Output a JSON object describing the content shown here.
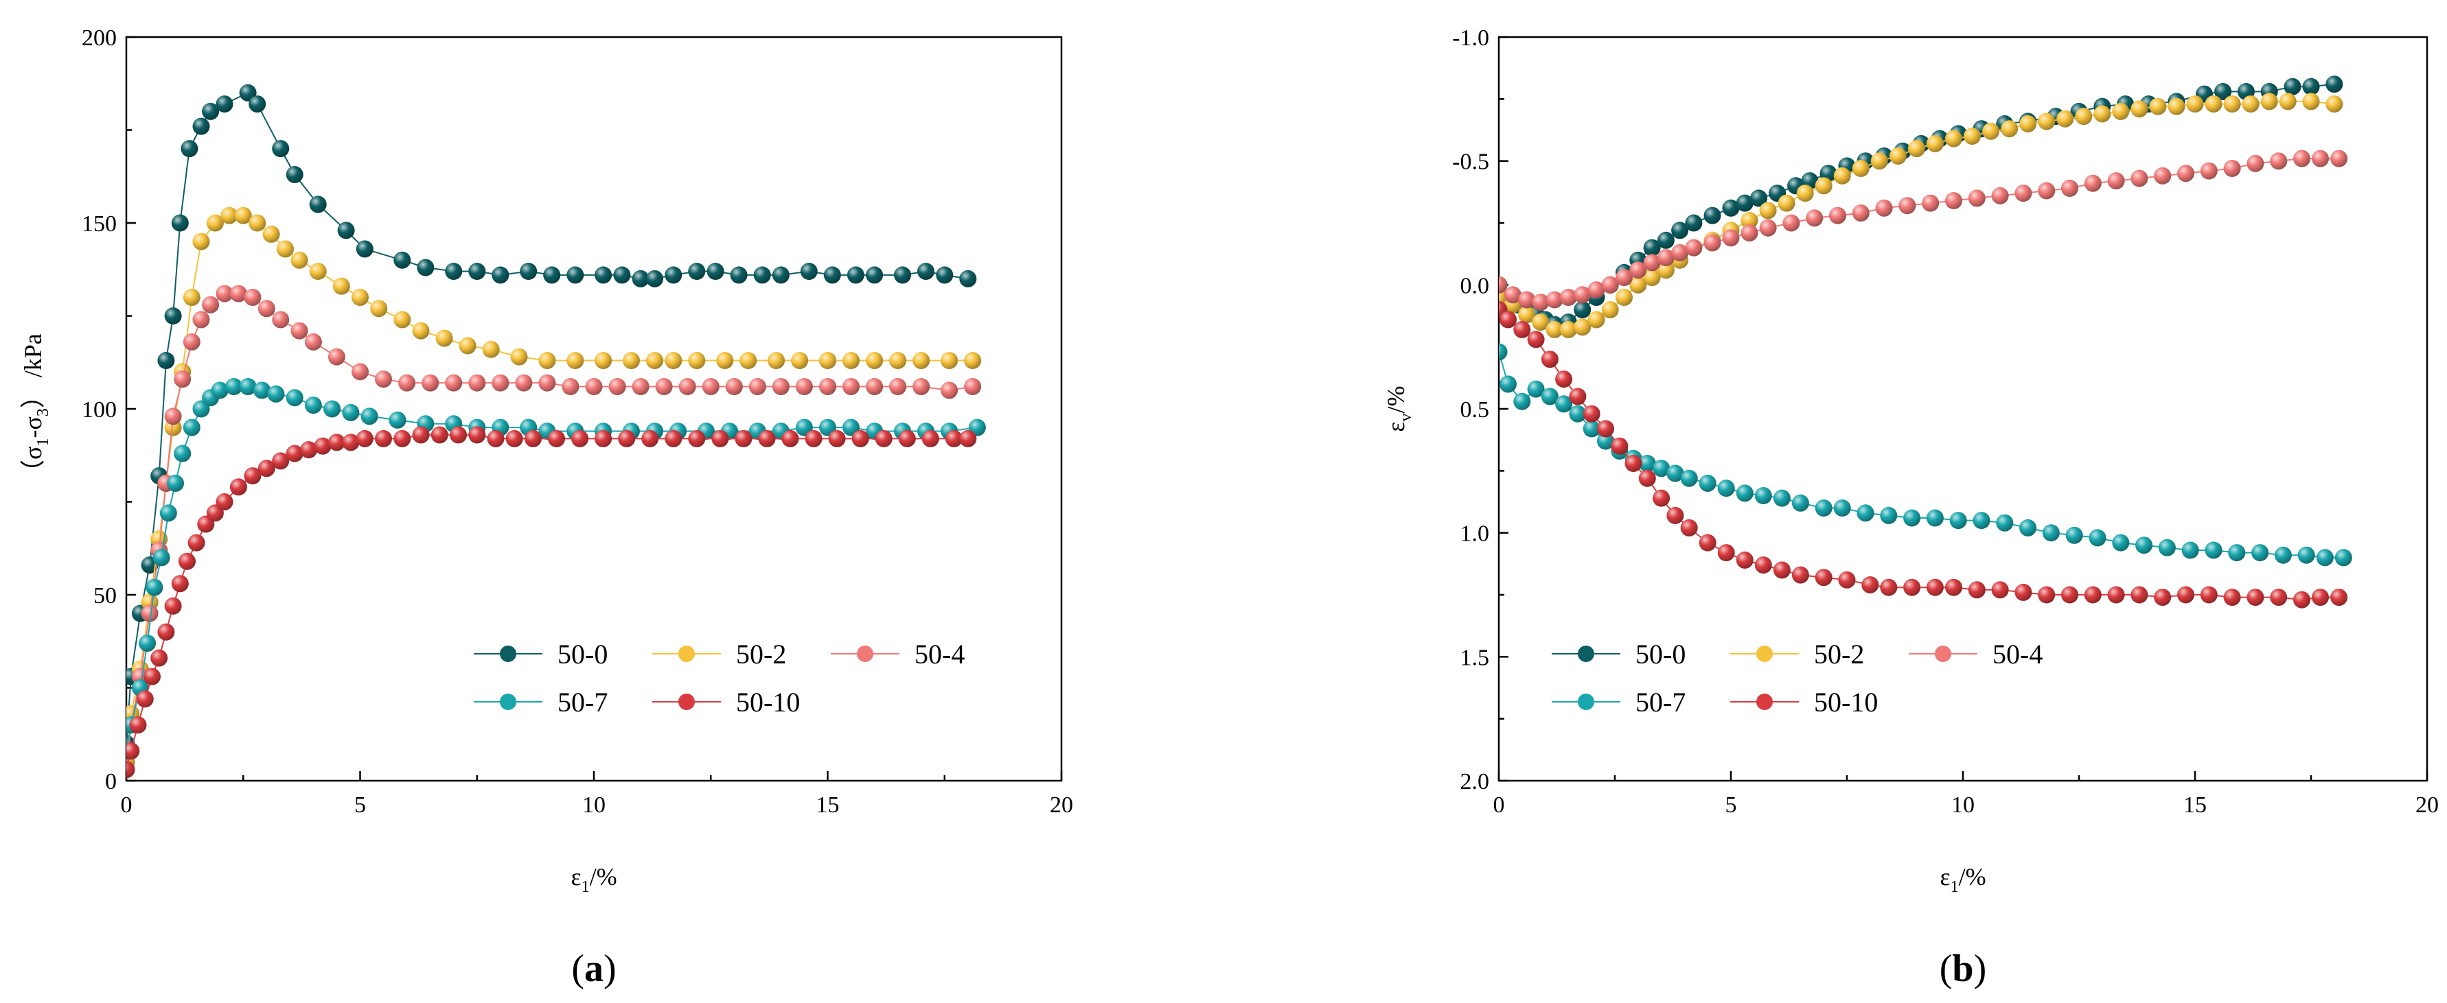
{
  "colors": {
    "50-0": "#0d5e63",
    "50-2": "#f6c23c",
    "50-4": "#f07877",
    "50-7": "#19a6ad",
    "50-10": "#d93a3e"
  },
  "chart_data": [
    {
      "panel": "(a)",
      "panel_prefix": "(",
      "panel_letter": "a",
      "panel_suffix": ")",
      "type": "line",
      "title": "",
      "xlabel": "ε1/%",
      "xlabel_main": "ε",
      "xlabel_sub": "1",
      "xlabel_suffix": "/%",
      "ylabel": "(σ1-σ3) /kPa",
      "ylabel_parts": [
        "（σ",
        "1",
        "-σ",
        "3",
        "） /kPa"
      ],
      "xlim": [
        0,
        20
      ],
      "ylim": [
        0,
        200
      ],
      "xticks": [
        "0",
        "5",
        "10",
        "15",
        "20"
      ],
      "yticks": [
        "0",
        "50",
        "100",
        "150",
        "200"
      ],
      "legend": {
        "placement": "lower-right",
        "entries": [
          "50-0",
          "50-2",
          "50-4",
          "50-7",
          "50-10"
        ]
      },
      "series": [
        {
          "name": "50-0",
          "x": [
            0,
            0.1,
            0.3,
            0.5,
            0.7,
            0.85,
            1.0,
            1.15,
            1.35,
            1.6,
            1.8,
            2.1,
            2.6,
            2.8,
            3.3,
            3.6,
            4.1,
            4.7,
            5.1,
            5.9,
            6.4,
            7.0,
            7.5,
            8.0,
            8.6,
            9.1,
            9.6,
            10.2,
            10.6,
            11.0,
            11.3,
            11.7,
            12.2,
            12.6,
            13.1,
            13.6,
            14.0,
            14.6,
            15.1,
            15.6,
            16.0,
            16.6,
            17.1,
            17.5,
            18.0
          ],
          "y": [
            10,
            28,
            45,
            58,
            82,
            113,
            125,
            150,
            170,
            176,
            180,
            182,
            185,
            182,
            170,
            163,
            155,
            148,
            143,
            140,
            138,
            137,
            137,
            136,
            137,
            136,
            136,
            136,
            136,
            135,
            135,
            136,
            137,
            137,
            136,
            136,
            136,
            137,
            136,
            136,
            136,
            136,
            137,
            136,
            135
          ]
        },
        {
          "name": "50-2",
          "x": [
            0,
            0.1,
            0.3,
            0.5,
            0.7,
            0.85,
            1.0,
            1.2,
            1.4,
            1.6,
            1.9,
            2.2,
            2.5,
            2.8,
            3.1,
            3.4,
            3.7,
            4.1,
            4.6,
            5.0,
            5.4,
            5.9,
            6.3,
            6.8,
            7.3,
            7.8,
            8.4,
            9.0,
            9.6,
            10.2,
            10.8,
            11.3,
            11.7,
            12.2,
            12.8,
            13.3,
            13.9,
            14.4,
            15.0,
            15.5,
            16.0,
            16.5,
            17.0,
            17.6,
            18.1
          ],
          "y": [
            5,
            18,
            30,
            48,
            65,
            80,
            95,
            110,
            130,
            145,
            150,
            152,
            152,
            150,
            147,
            143,
            140,
            137,
            133,
            130,
            127,
            124,
            121,
            119,
            117,
            116,
            114,
            113,
            113,
            113,
            113,
            113,
            113,
            113,
            113,
            113,
            113,
            113,
            113,
            113,
            113,
            113,
            113,
            113,
            113
          ]
        },
        {
          "name": "50-4",
          "x": [
            0,
            0.1,
            0.3,
            0.5,
            0.7,
            0.85,
            1.0,
            1.2,
            1.4,
            1.6,
            1.8,
            2.1,
            2.4,
            2.7,
            3.0,
            3.3,
            3.7,
            4.0,
            4.5,
            5.0,
            5.5,
            6.0,
            6.5,
            7.0,
            7.5,
            8.0,
            8.5,
            9.0,
            9.5,
            10.0,
            10.5,
            11.0,
            11.5,
            12.0,
            12.5,
            13.0,
            13.5,
            14.0,
            14.5,
            15.0,
            15.5,
            16.0,
            16.5,
            17.0,
            17.6,
            18.1
          ],
          "y": [
            3,
            15,
            28,
            45,
            62,
            80,
            98,
            108,
            118,
            124,
            128,
            131,
            131,
            130,
            127,
            124,
            121,
            118,
            114,
            110,
            108,
            107,
            107,
            107,
            107,
            107,
            107,
            107,
            106,
            106,
            106,
            106,
            106,
            106,
            106,
            106,
            106,
            106,
            106,
            106,
            106,
            106,
            106,
            106,
            105,
            106
          ]
        },
        {
          "name": "50-7",
          "x": [
            0,
            0.1,
            0.3,
            0.45,
            0.6,
            0.75,
            0.9,
            1.05,
            1.2,
            1.4,
            1.6,
            1.8,
            2.0,
            2.3,
            2.6,
            2.9,
            3.2,
            3.6,
            4.0,
            4.4,
            4.8,
            5.2,
            5.8,
            6.4,
            7.0,
            7.5,
            8.0,
            8.6,
            9.0,
            9.6,
            10.2,
            10.8,
            11.3,
            11.8,
            12.4,
            12.9,
            13.5,
            14.0,
            14.5,
            15.0,
            15.5,
            16.0,
            16.6,
            17.1,
            17.6,
            18.2
          ],
          "y": [
            8,
            15,
            25,
            37,
            52,
            60,
            72,
            80,
            88,
            95,
            100,
            103,
            105,
            106,
            106,
            105,
            104,
            103,
            101,
            100,
            99,
            98,
            97,
            96,
            96,
            95,
            95,
            95,
            94,
            94,
            94,
            94,
            94,
            94,
            94,
            94,
            94,
            94,
            95,
            95,
            95,
            94,
            94,
            94,
            94,
            95
          ]
        },
        {
          "name": "50-10",
          "x": [
            0,
            0.1,
            0.25,
            0.4,
            0.55,
            0.7,
            0.85,
            1.0,
            1.15,
            1.3,
            1.5,
            1.7,
            1.9,
            2.1,
            2.4,
            2.7,
            3.0,
            3.3,
            3.6,
            3.9,
            4.2,
            4.5,
            4.8,
            5.1,
            5.5,
            5.9,
            6.3,
            6.7,
            7.1,
            7.5,
            7.9,
            8.3,
            8.7,
            9.2,
            9.7,
            10.2,
            10.7,
            11.2,
            11.7,
            12.2,
            12.7,
            13.2,
            13.7,
            14.2,
            14.7,
            15.2,
            15.7,
            16.2,
            16.7,
            17.2,
            17.7,
            18.0
          ],
          "y": [
            3,
            8,
            15,
            22,
            28,
            33,
            40,
            47,
            53,
            59,
            64,
            69,
            72,
            75,
            79,
            82,
            84,
            86,
            88,
            89,
            90,
            91,
            91,
            92,
            92,
            92,
            93,
            93,
            93,
            93,
            92,
            92,
            92,
            92,
            92,
            92,
            92,
            92,
            92,
            92,
            92,
            92,
            92,
            92,
            92,
            92,
            92,
            92,
            92,
            92,
            92,
            92
          ]
        }
      ]
    },
    {
      "panel": "(b)",
      "panel_prefix": "(",
      "panel_letter": "b",
      "panel_suffix": ")",
      "type": "line",
      "title": "",
      "xlabel": "ε1/%",
      "xlabel_main": "ε",
      "xlabel_sub": "1",
      "xlabel_suffix": "/%",
      "ylabel": "εv/%",
      "ylabel_main": "ε",
      "ylabel_sub": "v",
      "ylabel_suffix": "/%",
      "xlim": [
        0,
        20
      ],
      "ylim": [
        2.0,
        -1.0
      ],
      "xticks": [
        "0",
        "5",
        "10",
        "15",
        "20"
      ],
      "yticks": [
        "2.0",
        "1.5",
        "1.0",
        "0.5",
        "0.0",
        "-0.5",
        "-1.0"
      ],
      "legend": {
        "placement": "lower-left",
        "entries": [
          "50-0",
          "50-2",
          "50-4",
          "50-7",
          "50-10"
        ]
      },
      "series": [
        {
          "name": "50-0",
          "x": [
            0,
            0.2,
            0.4,
            0.6,
            0.8,
            1.0,
            1.2,
            1.5,
            1.8,
            2.1,
            2.4,
            2.7,
            3.0,
            3.3,
            3.6,
            3.9,
            4.2,
            4.6,
            5.0,
            5.3,
            5.6,
            6.0,
            6.4,
            6.7,
            7.1,
            7.5,
            7.9,
            8.3,
            8.7,
            9.1,
            9.5,
            9.9,
            10.4,
            10.9,
            11.4,
            12.0,
            12.5,
            13.0,
            13.5,
            14.0,
            14.6,
            15.2,
            15.6,
            16.1,
            16.6,
            17.1,
            17.5,
            18.0
          ],
          "y": [
            0.0,
            0.05,
            0.08,
            0.1,
            0.12,
            0.14,
            0.16,
            0.15,
            0.1,
            0.05,
            0.0,
            -0.05,
            -0.1,
            -0.15,
            -0.18,
            -0.22,
            -0.25,
            -0.28,
            -0.31,
            -0.33,
            -0.35,
            -0.37,
            -0.4,
            -0.42,
            -0.45,
            -0.48,
            -0.5,
            -0.52,
            -0.54,
            -0.57,
            -0.59,
            -0.61,
            -0.63,
            -0.65,
            -0.66,
            -0.68,
            -0.7,
            -0.72,
            -0.73,
            -0.73,
            -0.74,
            -0.77,
            -0.78,
            -0.78,
            -0.78,
            -0.8,
            -0.8,
            -0.81
          ]
        },
        {
          "name": "50-2",
          "x": [
            0,
            0.3,
            0.6,
            0.9,
            1.2,
            1.5,
            1.8,
            2.1,
            2.4,
            2.7,
            3.0,
            3.3,
            3.6,
            3.9,
            4.2,
            4.6,
            5.0,
            5.4,
            5.8,
            6.2,
            6.6,
            7.0,
            7.4,
            7.8,
            8.2,
            8.6,
            9.0,
            9.4,
            9.8,
            10.2,
            10.6,
            11.0,
            11.4,
            11.8,
            12.2,
            12.6,
            13.0,
            13.4,
            13.8,
            14.2,
            14.6,
            15.0,
            15.4,
            15.8,
            16.2,
            16.6,
            17.0,
            17.5,
            18.0
          ],
          "y": [
            0.05,
            0.08,
            0.12,
            0.15,
            0.18,
            0.18,
            0.17,
            0.14,
            0.1,
            0.05,
            0.0,
            -0.03,
            -0.06,
            -0.1,
            -0.15,
            -0.18,
            -0.22,
            -0.26,
            -0.3,
            -0.33,
            -0.37,
            -0.4,
            -0.44,
            -0.47,
            -0.5,
            -0.52,
            -0.55,
            -0.57,
            -0.59,
            -0.6,
            -0.62,
            -0.63,
            -0.65,
            -0.66,
            -0.67,
            -0.68,
            -0.69,
            -0.7,
            -0.71,
            -0.72,
            -0.72,
            -0.73,
            -0.73,
            -0.73,
            -0.73,
            -0.74,
            -0.74,
            -0.74,
            -0.73
          ]
        },
        {
          "name": "50-4",
          "x": [
            0,
            0.3,
            0.6,
            0.9,
            1.2,
            1.5,
            1.8,
            2.1,
            2.4,
            2.7,
            3.0,
            3.3,
            3.6,
            3.9,
            4.2,
            4.6,
            5.0,
            5.4,
            5.8,
            6.3,
            6.8,
            7.3,
            7.8,
            8.3,
            8.8,
            9.3,
            9.8,
            10.3,
            10.8,
            11.3,
            11.8,
            12.3,
            12.8,
            13.3,
            13.8,
            14.3,
            14.8,
            15.3,
            15.8,
            16.3,
            16.8,
            17.3,
            17.7,
            18.1
          ],
          "y": [
            0.0,
            0.04,
            0.06,
            0.07,
            0.06,
            0.05,
            0.04,
            0.02,
            0.0,
            -0.03,
            -0.06,
            -0.09,
            -0.11,
            -0.13,
            -0.15,
            -0.17,
            -0.19,
            -0.21,
            -0.23,
            -0.25,
            -0.27,
            -0.28,
            -0.29,
            -0.31,
            -0.32,
            -0.33,
            -0.34,
            -0.35,
            -0.36,
            -0.37,
            -0.38,
            -0.39,
            -0.41,
            -0.42,
            -0.43,
            -0.44,
            -0.45,
            -0.46,
            -0.47,
            -0.49,
            -0.5,
            -0.51,
            -0.51,
            -0.51
          ]
        },
        {
          "name": "50-7",
          "x": [
            0,
            0.2,
            0.5,
            0.8,
            1.1,
            1.4,
            1.7,
            2.0,
            2.3,
            2.6,
            2.9,
            3.2,
            3.5,
            3.8,
            4.1,
            4.5,
            4.9,
            5.3,
            5.7,
            6.1,
            6.5,
            7.0,
            7.4,
            7.9,
            8.4,
            8.9,
            9.4,
            9.9,
            10.4,
            10.9,
            11.4,
            11.9,
            12.4,
            12.9,
            13.4,
            13.9,
            14.4,
            14.9,
            15.4,
            15.9,
            16.4,
            16.9,
            17.4,
            17.8,
            18.2
          ],
          "y": [
            0.27,
            0.4,
            0.47,
            0.42,
            0.45,
            0.48,
            0.52,
            0.58,
            0.63,
            0.67,
            0.7,
            0.72,
            0.74,
            0.76,
            0.78,
            0.8,
            0.82,
            0.84,
            0.85,
            0.86,
            0.88,
            0.9,
            0.9,
            0.92,
            0.93,
            0.94,
            0.94,
            0.95,
            0.95,
            0.96,
            0.98,
            1.0,
            1.01,
            1.02,
            1.04,
            1.05,
            1.06,
            1.07,
            1.07,
            1.08,
            1.08,
            1.09,
            1.09,
            1.1,
            1.1
          ]
        },
        {
          "name": "50-10",
          "x": [
            0,
            0.2,
            0.5,
            0.8,
            1.1,
            1.4,
            1.7,
            2.0,
            2.3,
            2.6,
            2.9,
            3.2,
            3.5,
            3.8,
            4.1,
            4.5,
            4.9,
            5.3,
            5.7,
            6.1,
            6.5,
            7.0,
            7.5,
            8.0,
            8.4,
            8.9,
            9.4,
            9.8,
            10.3,
            10.8,
            11.3,
            11.8,
            12.3,
            12.8,
            13.3,
            13.8,
            14.3,
            14.8,
            15.3,
            15.8,
            16.3,
            16.8,
            17.3,
            17.7,
            18.1
          ],
          "y": [
            0.1,
            0.14,
            0.18,
            0.22,
            0.3,
            0.38,
            0.45,
            0.52,
            0.58,
            0.65,
            0.72,
            0.78,
            0.86,
            0.93,
            0.98,
            1.04,
            1.08,
            1.11,
            1.13,
            1.15,
            1.17,
            1.18,
            1.19,
            1.21,
            1.22,
            1.22,
            1.22,
            1.22,
            1.23,
            1.23,
            1.24,
            1.25,
            1.25,
            1.25,
            1.25,
            1.25,
            1.26,
            1.25,
            1.25,
            1.26,
            1.26,
            1.26,
            1.27,
            1.26,
            1.26
          ]
        }
      ]
    }
  ]
}
